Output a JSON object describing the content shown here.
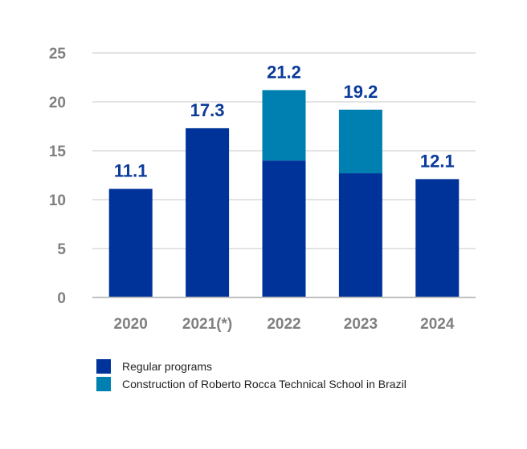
{
  "chart_data": {
    "type": "bar",
    "stacked": true,
    "categories": [
      "2020",
      "2021(*)",
      "2022",
      "2023",
      "2024"
    ],
    "series": [
      {
        "name": "Regular programs",
        "values": [
          11.1,
          17.3,
          14.0,
          12.7,
          12.1
        ],
        "color": "#00339a"
      },
      {
        "name": "Construction of Roberto Rocca Technical School in Brazil",
        "values": [
          0,
          0,
          7.2,
          6.5,
          0
        ],
        "color": "#0080b0"
      }
    ],
    "totals": [
      "11.1",
      "17.3",
      "21.2",
      "19.2",
      "12.1"
    ],
    "ylim": [
      0,
      25
    ],
    "yticks": [
      "0",
      "5",
      "10",
      "15",
      "20",
      "25"
    ],
    "grid": true,
    "legend": "bottom-left",
    "title": "",
    "xlabel": "",
    "ylabel": ""
  }
}
